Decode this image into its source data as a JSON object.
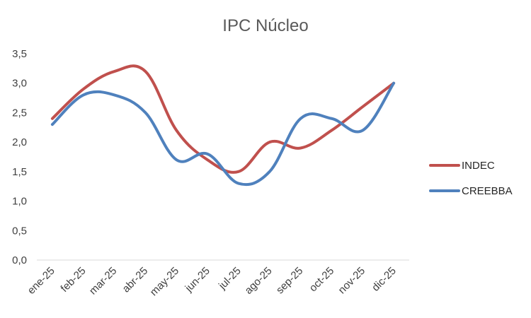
{
  "chart_data": {
    "type": "line",
    "title": "IPC Núcleo",
    "xlabel": "",
    "ylabel": "",
    "categories": [
      "ene-25",
      "feb-25",
      "mar-25",
      "abr-25",
      "may-25",
      "jun-25",
      "jul-25",
      "ago-25",
      "sep-25",
      "oct-25",
      "nov-25",
      "dic-25"
    ],
    "y_ticks": [
      "0,0",
      "0,5",
      "1,0",
      "1,5",
      "2,0",
      "2,5",
      "3,0",
      "3,5"
    ],
    "ylim": [
      0,
      3.5
    ],
    "grid": false,
    "smooth": true,
    "legend_position": "right",
    "series": [
      {
        "name": "INDEC",
        "color": "#c0504d",
        "values": [
          2.4,
          2.9,
          3.2,
          3.2,
          2.2,
          1.7,
          1.5,
          2.0,
          1.9,
          2.2,
          2.6,
          3.0
        ]
      },
      {
        "name": "CREEBBA",
        "color": "#4f81bd",
        "values": [
          2.3,
          2.8,
          2.8,
          2.5,
          1.7,
          1.8,
          1.3,
          1.5,
          2.4,
          2.4,
          2.2,
          3.0
        ]
      }
    ]
  }
}
